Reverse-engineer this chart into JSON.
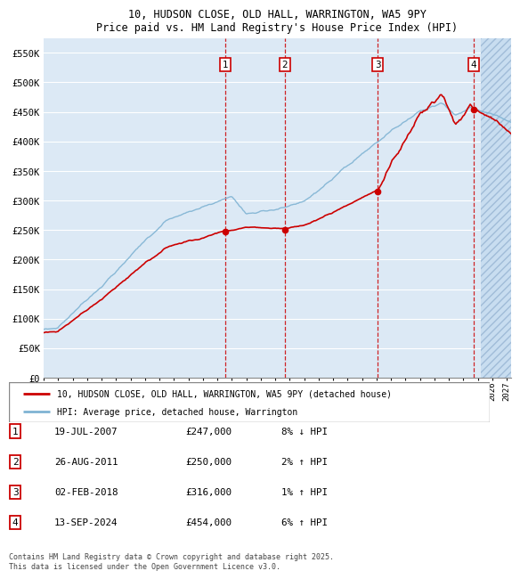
{
  "title_line1": "10, HUDSON CLOSE, OLD HALL, WARRINGTON, WA5 9PY",
  "title_line2": "Price paid vs. HM Land Registry's House Price Index (HPI)",
  "ylim": [
    0,
    575000
  ],
  "yticks": [
    0,
    50000,
    100000,
    150000,
    200000,
    250000,
    300000,
    350000,
    400000,
    450000,
    500000,
    550000
  ],
  "ytick_labels": [
    "£0",
    "£50K",
    "£100K",
    "£150K",
    "£200K",
    "£250K",
    "£300K",
    "£350K",
    "£400K",
    "£450K",
    "£500K",
    "£550K"
  ],
  "xlim_start": 1995.0,
  "xlim_end": 2027.3,
  "background_color": "#dce9f5",
  "sale_color": "#cc0000",
  "hpi_color": "#7fb3d3",
  "sale_label": "10, HUDSON CLOSE, OLD HALL, WARRINGTON, WA5 9PY (detached house)",
  "hpi_label": "HPI: Average price, detached house, Warrington",
  "transactions": [
    {
      "num": 1,
      "date": "19-JUL-2007",
      "price": 247000,
      "pct": "8%",
      "dir": "↓",
      "year": 2007.54
    },
    {
      "num": 2,
      "date": "26-AUG-2011",
      "price": 250000,
      "pct": "2%",
      "dir": "↑",
      "year": 2011.65
    },
    {
      "num": 3,
      "date": "02-FEB-2018",
      "price": 316000,
      "pct": "1%",
      "dir": "↑",
      "year": 2018.09
    },
    {
      "num": 4,
      "date": "13-SEP-2024",
      "price": 454000,
      "pct": "6%",
      "dir": "↑",
      "year": 2024.71
    }
  ],
  "footer_line1": "Contains HM Land Registry data © Crown copyright and database right 2025.",
  "footer_line2": "This data is licensed under the Open Government Licence v3.0.",
  "hatch_start": 2025.2
}
